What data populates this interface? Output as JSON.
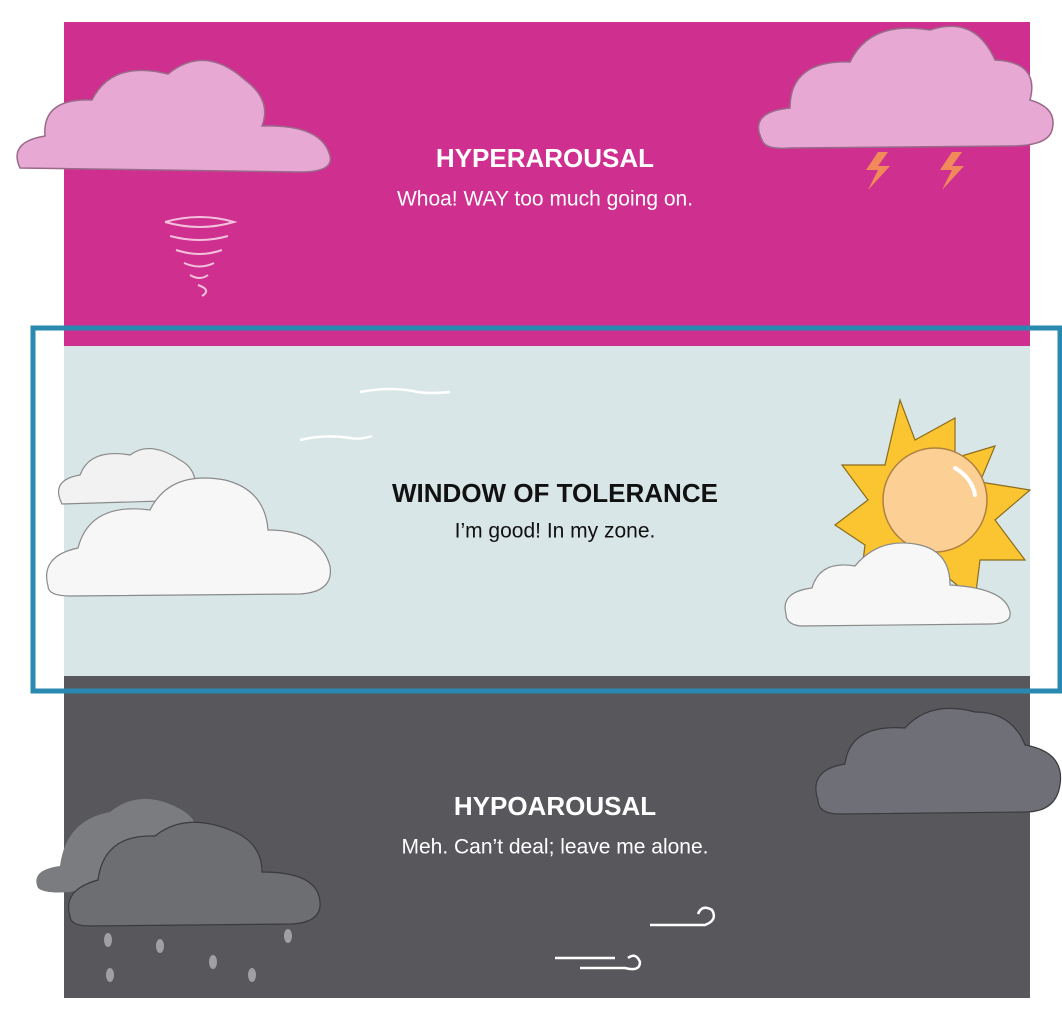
{
  "zones": [
    {
      "title": "HYPERAROUSAL",
      "subtitle": "Whoa! WAY too much going on."
    },
    {
      "title": "WINDOW OF TOLERANCE",
      "subtitle": "I’m good! In my zone."
    },
    {
      "title": "HYPOAROUSAL",
      "subtitle": "Meh. Can’t deal; leave me alone."
    }
  ]
}
